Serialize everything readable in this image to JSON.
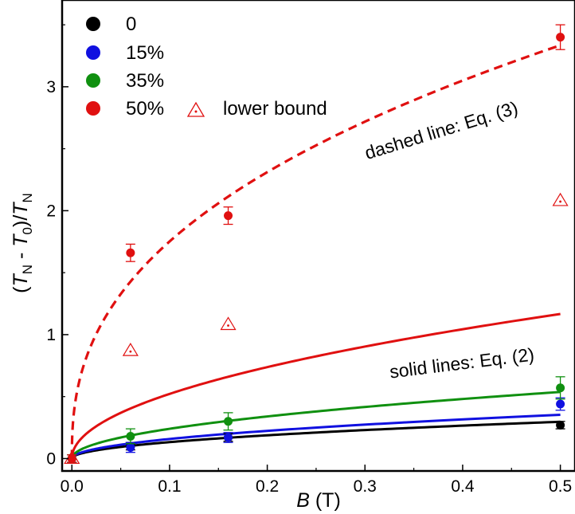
{
  "chart_data": {
    "type": "scatter",
    "xlabel": {
      "main": "B",
      "unit": " (T)"
    },
    "ylabel": {
      "open": "(",
      "t1": "T",
      "s1": "N",
      "minus": " - ",
      "t2": "T",
      "s2": "0",
      "close": ")/",
      "t3": "T",
      "s3": "N"
    },
    "xlim": [
      -0.01,
      0.515
    ],
    "ylim": [
      -0.1,
      3.7
    ],
    "xticks": [
      0.0,
      0.1,
      0.2,
      0.3,
      0.4,
      0.5
    ],
    "xtick_labels": [
      "0.0",
      "0.1",
      "0.2",
      "0.3",
      "0.4",
      "0.5"
    ],
    "yticks": [
      0,
      1,
      2,
      3
    ],
    "ytick_labels": [
      "0",
      "1",
      "2",
      "3"
    ],
    "legend_position": "top-left",
    "series": [
      {
        "name": "0",
        "color": "#000000",
        "points": [
          {
            "x": 0.0,
            "y": 0.0,
            "err": 0.03
          },
          {
            "x": 0.06,
            "y": 0.1,
            "err": 0.03
          },
          {
            "x": 0.16,
            "y": 0.17,
            "err": 0.03
          },
          {
            "x": 0.5,
            "y": 0.27,
            "err": 0.03
          }
        ],
        "fit": {
          "style": "solid",
          "a": 0.42,
          "p": 0.5
        }
      },
      {
        "name": "15%",
        "color": "#1010e0",
        "points": [
          {
            "x": 0.0,
            "y": 0.0,
            "err": 0.03
          },
          {
            "x": 0.06,
            "y": 0.09,
            "err": 0.04
          },
          {
            "x": 0.16,
            "y": 0.17,
            "err": 0.04
          },
          {
            "x": 0.5,
            "y": 0.44,
            "err": 0.05
          }
        ],
        "fit": {
          "style": "solid",
          "a": 0.5,
          "p": 0.5
        }
      },
      {
        "name": "35%",
        "color": "#109010",
        "points": [
          {
            "x": 0.0,
            "y": 0.0,
            "err": 0.03
          },
          {
            "x": 0.06,
            "y": 0.18,
            "err": 0.06
          },
          {
            "x": 0.16,
            "y": 0.3,
            "err": 0.07
          },
          {
            "x": 0.5,
            "y": 0.57,
            "err": 0.09
          }
        ],
        "fit": {
          "style": "solid",
          "a": 0.76,
          "p": 0.5
        }
      },
      {
        "name": "50%",
        "color": "#e01010",
        "points": [
          {
            "x": 0.0,
            "y": 0.0,
            "err": 0.03
          },
          {
            "x": 0.06,
            "y": 1.66,
            "err": 0.07
          },
          {
            "x": 0.16,
            "y": 1.96,
            "err": 0.07
          },
          {
            "x": 0.5,
            "y": 3.4,
            "err": 0.1
          }
        ],
        "fit": {
          "style": "solid",
          "a": 1.65,
          "p": 0.5
        },
        "fit_dashed": {
          "style": "dashed",
          "a": 4.4,
          "p": 0.4
        }
      }
    ],
    "lower_bound": {
      "name": "lower bound",
      "color": "#e01010",
      "points": [
        {
          "x": 0.0,
          "y": 0.0
        },
        {
          "x": 0.06,
          "y": 0.87
        },
        {
          "x": 0.16,
          "y": 1.08
        },
        {
          "x": 0.5,
          "y": 2.08
        }
      ]
    },
    "annotations": {
      "dashed": {
        "text": "dashed line: Eq. (3)",
        "x": 0.38,
        "y": 2.6,
        "angle": -17
      },
      "solid": {
        "text": "solid lines: Eq. (2)",
        "x": 0.4,
        "y": 0.72,
        "angle": -7
      }
    }
  }
}
